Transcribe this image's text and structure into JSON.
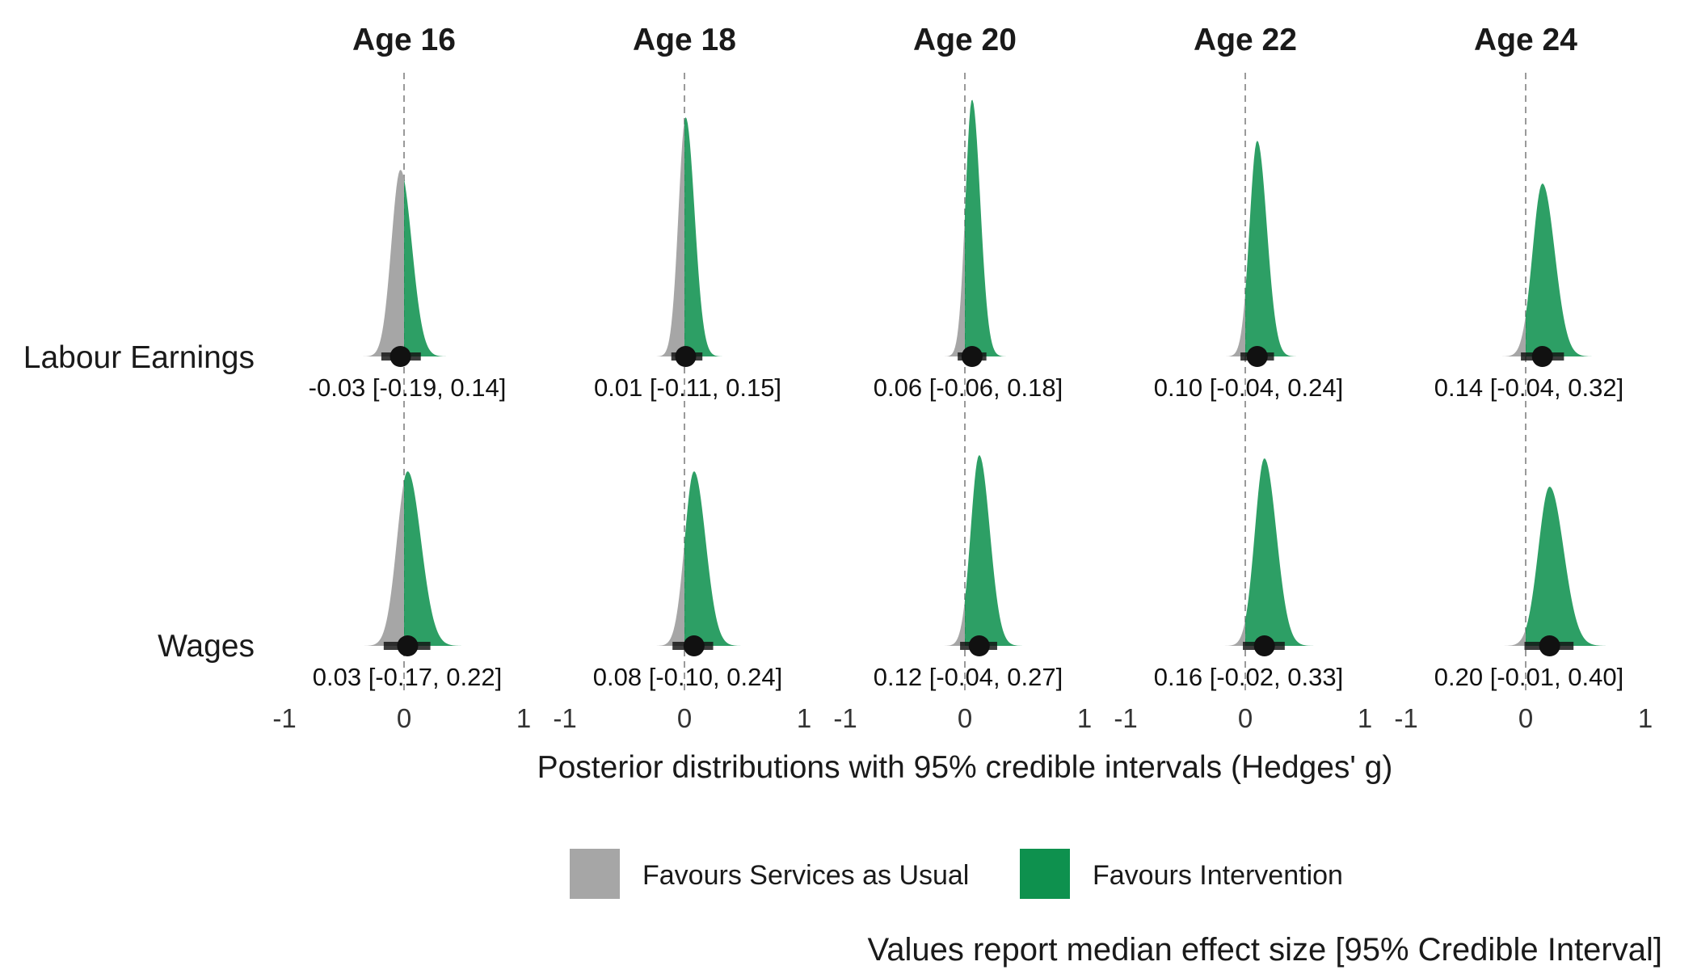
{
  "chart_data": {
    "type": "density",
    "facets": [
      "Age 16",
      "Age 18",
      "Age 20",
      "Age 22",
      "Age 24"
    ],
    "rows": [
      "Labour Earnings",
      "Wages"
    ],
    "xlim": [
      -1,
      1
    ],
    "xticks": [
      "-1",
      "0",
      "1"
    ],
    "xlabel": "Posterior distributions with 95% credible intervals (Hedges' g)",
    "reference_line": 0,
    "colors": {
      "negative": "#a6a6a6",
      "positive": "#0e914e",
      "point": "#111111"
    },
    "legend": {
      "items": [
        {
          "label": "Favours Services as Usual",
          "color": "#a6a6a6"
        },
        {
          "label": "Favours Intervention",
          "color": "#0e914e"
        }
      ]
    },
    "caption": "Values report median effect size [95% Credible Interval]",
    "cells": [
      {
        "row": "Labour Earnings",
        "facet": "Age 16",
        "median": -0.03,
        "lower": -0.19,
        "upper": 0.14,
        "label": "-0.03 [-0.19, 0.14]"
      },
      {
        "row": "Labour Earnings",
        "facet": "Age 18",
        "median": 0.01,
        "lower": -0.11,
        "upper": 0.15,
        "label": "0.01 [-0.11, 0.15]"
      },
      {
        "row": "Labour Earnings",
        "facet": "Age 20",
        "median": 0.06,
        "lower": -0.06,
        "upper": 0.18,
        "label": "0.06 [-0.06, 0.18]"
      },
      {
        "row": "Labour Earnings",
        "facet": "Age 22",
        "median": 0.1,
        "lower": -0.04,
        "upper": 0.24,
        "label": "0.10 [-0.04, 0.24]"
      },
      {
        "row": "Labour Earnings",
        "facet": "Age 24",
        "median": 0.14,
        "lower": -0.04,
        "upper": 0.32,
        "label": "0.14 [-0.04, 0.32]"
      },
      {
        "row": "Wages",
        "facet": "Age 16",
        "median": 0.03,
        "lower": -0.17,
        "upper": 0.22,
        "label": "0.03 [-0.17, 0.22]"
      },
      {
        "row": "Wages",
        "facet": "Age 18",
        "median": 0.08,
        "lower": -0.1,
        "upper": 0.24,
        "label": "0.08 [-0.10, 0.24]"
      },
      {
        "row": "Wages",
        "facet": "Age 20",
        "median": 0.12,
        "lower": -0.04,
        "upper": 0.27,
        "label": "0.12 [-0.04, 0.27]"
      },
      {
        "row": "Wages",
        "facet": "Age 22",
        "median": 0.16,
        "lower": -0.02,
        "upper": 0.33,
        "label": "0.16 [-0.02, 0.33]"
      },
      {
        "row": "Wages",
        "facet": "Age 24",
        "median": 0.2,
        "lower": -0.01,
        "upper": 0.4,
        "label": "0.20 [-0.01, 0.40]"
      }
    ]
  }
}
